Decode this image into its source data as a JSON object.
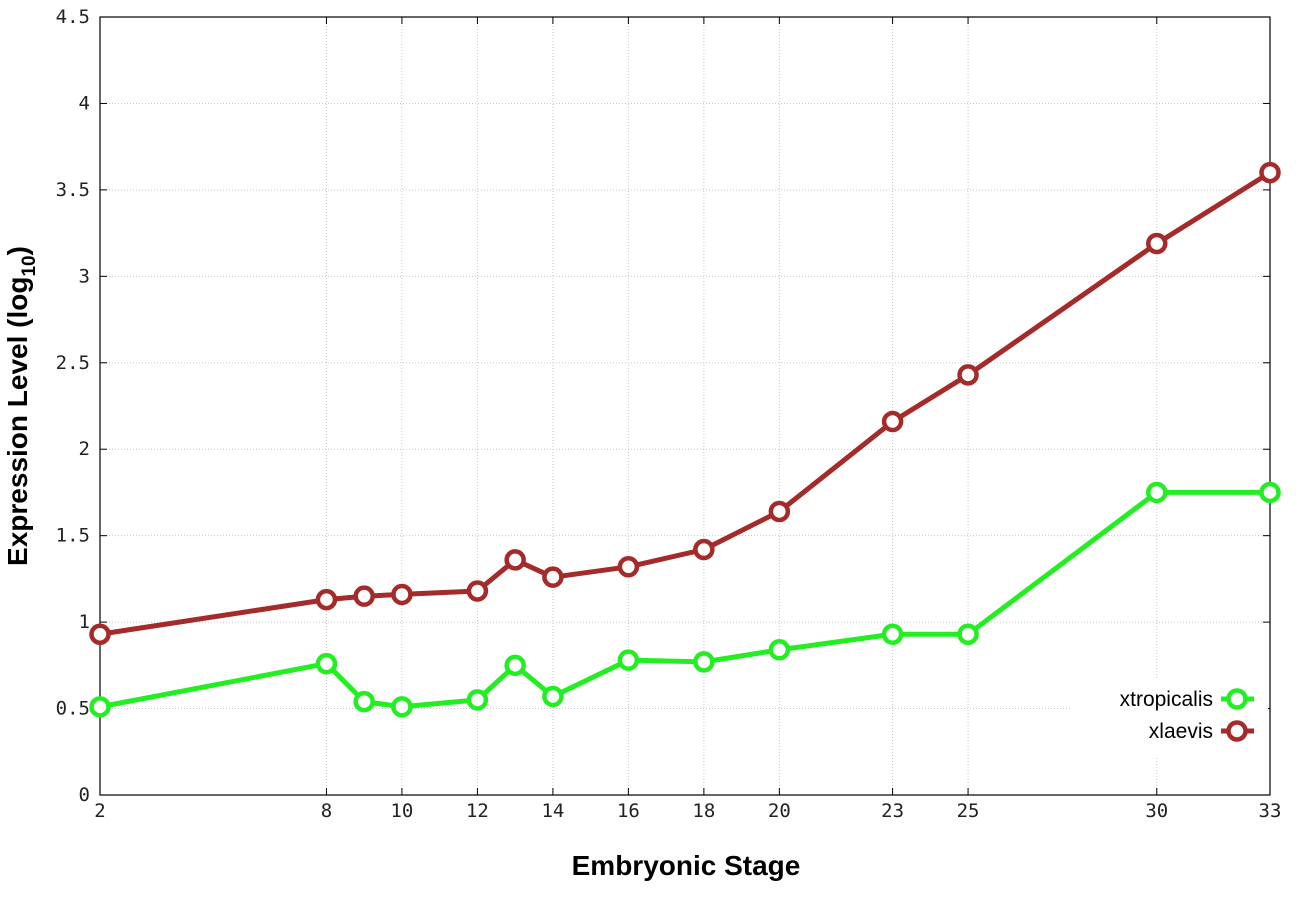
{
  "chart_data": {
    "type": "line",
    "xlabel": "Embryonic Stage",
    "ylabel": {
      "main": "Expression Level (log",
      "sub": "10",
      "close": ")"
    },
    "x": [
      2,
      8,
      9,
      10,
      12,
      13,
      14,
      16,
      18,
      20,
      23,
      25,
      30,
      33
    ],
    "x_ticks": [
      2,
      8,
      10,
      12,
      14,
      16,
      18,
      20,
      23,
      25,
      30,
      33
    ],
    "y_ticks": [
      "0",
      "0.5",
      "1",
      "1.5",
      "2",
      "2.5",
      "3",
      "3.5",
      "4",
      "4.5"
    ],
    "ylim": [
      0,
      4.5
    ],
    "grid": true,
    "legend_position": "bottom-right",
    "series": [
      {
        "name": "xtropicalis",
        "color": "#22ee22",
        "values": [
          0.51,
          0.76,
          0.54,
          0.51,
          0.55,
          0.75,
          0.57,
          0.78,
          0.77,
          0.84,
          0.93,
          0.93,
          1.75,
          1.75
        ]
      },
      {
        "name": "xlaevis",
        "color": "#a52a2a",
        "values": [
          0.93,
          1.13,
          1.15,
          1.16,
          1.18,
          1.36,
          1.26,
          1.32,
          1.42,
          1.64,
          2.16,
          2.43,
          3.19,
          3.6
        ]
      }
    ]
  }
}
